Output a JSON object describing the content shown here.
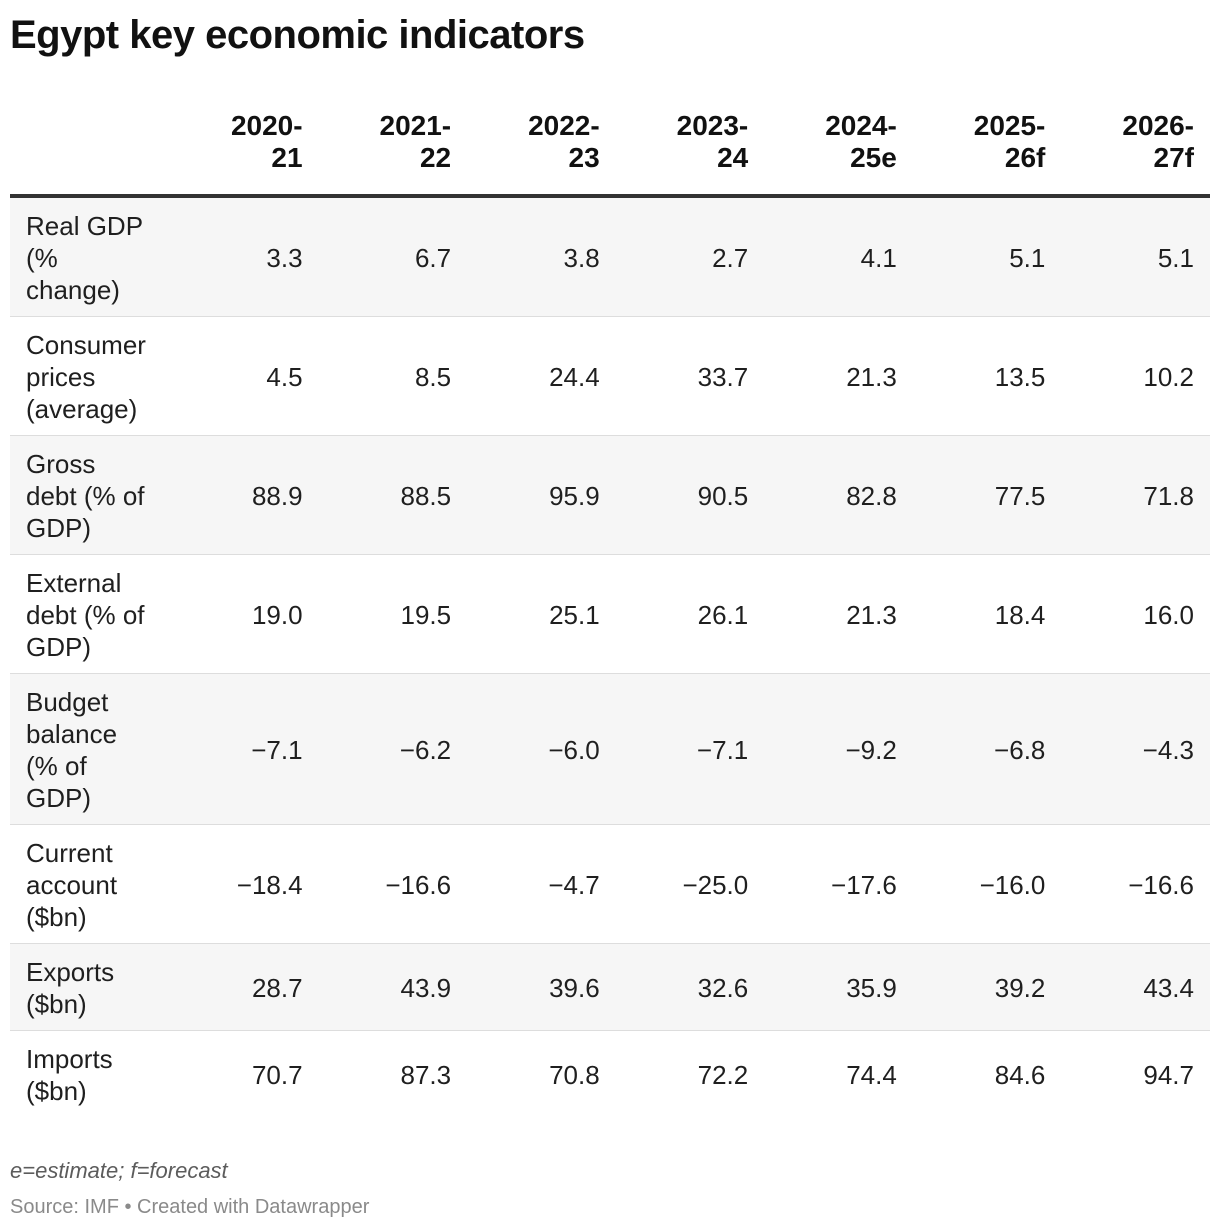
{
  "title": "Egypt key economic indicators",
  "chart_data": {
    "type": "table",
    "title": "Egypt key economic indicators",
    "columns": [
      [
        "2020-",
        "21"
      ],
      [
        "2021-",
        "22"
      ],
      [
        "2022-",
        "23"
      ],
      [
        "2023-",
        "24"
      ],
      [
        "2024-",
        "25e"
      ],
      [
        "2025-",
        "26f"
      ],
      [
        "2026-",
        "27f"
      ]
    ],
    "rows": [
      {
        "label": [
          "Real GDP",
          "(%",
          "change)"
        ],
        "values": [
          "3.3",
          "6.7",
          "3.8",
          "2.7",
          "4.1",
          "5.1",
          "5.1"
        ]
      },
      {
        "label": [
          "Consumer",
          "prices",
          "(average)"
        ],
        "values": [
          "4.5",
          "8.5",
          "24.4",
          "33.7",
          "21.3",
          "13.5",
          "10.2"
        ]
      },
      {
        "label": [
          "Gross",
          "debt (% of",
          "GDP)"
        ],
        "values": [
          "88.9",
          "88.5",
          "95.9",
          "90.5",
          "82.8",
          "77.5",
          "71.8"
        ]
      },
      {
        "label": [
          "External",
          "debt (% of",
          "GDP)"
        ],
        "values": [
          "19.0",
          "19.5",
          "25.1",
          "26.1",
          "21.3",
          "18.4",
          "16.0"
        ]
      },
      {
        "label": [
          "Budget",
          "balance",
          "(% of",
          "GDP)"
        ],
        "values": [
          "−7.1",
          "−6.2",
          "−6.0",
          "−7.1",
          "−9.2",
          "−6.8",
          "−4.3"
        ]
      },
      {
        "label": [
          "Current",
          "account",
          "($bn)"
        ],
        "values": [
          "−18.4",
          "−16.6",
          "−4.7",
          "−25.0",
          "−17.6",
          "−16.0",
          "−16.6"
        ]
      },
      {
        "label": [
          "Exports",
          "($bn)"
        ],
        "values": [
          "28.7",
          "43.9",
          "39.6",
          "32.6",
          "35.9",
          "39.2",
          "43.4"
        ]
      },
      {
        "label": [
          "Imports",
          "($bn)"
        ],
        "values": [
          "70.7",
          "87.3",
          "70.8",
          "72.2",
          "74.4",
          "84.6",
          "94.7"
        ]
      }
    ],
    "row_shading": "alternating"
  },
  "footnote": "e=estimate; f=forecast",
  "source": "Source: IMF • Created with Datawrapper",
  "colors": {
    "text": "#1a1a1a",
    "header_rule": "#333333",
    "row_rule": "#dddddd",
    "row_shade": "#f6f6f6",
    "note": "#5c5c5c",
    "source": "#8a8a8a"
  }
}
